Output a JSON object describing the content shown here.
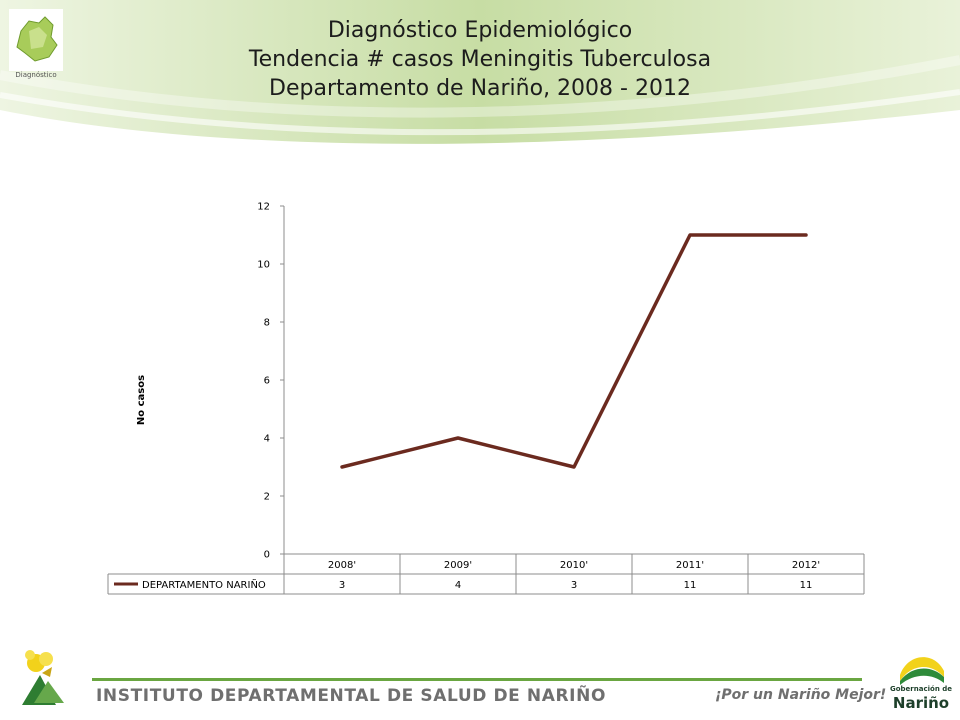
{
  "header": {
    "logo_caption": "Diagnóstico",
    "title_lines": [
      "Diagnóstico Epidemiológico",
      "Tendencia # casos Meningitis Tuberculosa",
      "Departamento de Nariño,  2008 - 2012"
    ]
  },
  "colors": {
    "series_line": "#6b2a1f",
    "header_green": "#cfe2b0",
    "footer_green": "#6aa641"
  },
  "chart_data": {
    "type": "line",
    "title": "",
    "xlabel": "",
    "ylabel": "No  casos",
    "categories": [
      "2008'",
      "2009'",
      "2010'",
      "2011'",
      "2012'"
    ],
    "series": [
      {
        "name": "DEPARTAMENTO NARIÑO",
        "values": [
          3,
          4,
          3,
          11,
          11
        ]
      }
    ],
    "ylim": [
      0,
      12
    ],
    "yticks": [
      0,
      2,
      4,
      6,
      8,
      10,
      12
    ],
    "grid": false,
    "legend": "data-table-below",
    "data_table": true
  },
  "footer": {
    "institution": "INSTITUTO DEPARTAMENTAL DE SALUD DE NARIÑO",
    "slogan": "¡Por un Nariño Mejor!",
    "gob_line1": "Gobernación de",
    "gob_line2": "Nariño"
  }
}
